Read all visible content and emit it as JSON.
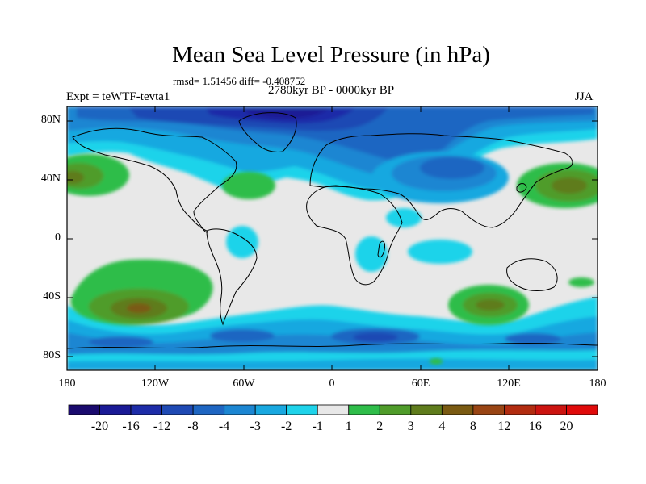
{
  "title": "Mean Sea Level Pressure (in hPa)",
  "stats_line": "rmsd= 1.51456 diff= -0.408752",
  "period_line": "2780kyr BP - 0000kyr BP",
  "experiment_label": "Expt = teWTF-tevta1",
  "season_label": "JJA",
  "lat_ticks": [
    "80N",
    "40N",
    "0",
    "40S",
    "80S"
  ],
  "lon_ticks": [
    "180",
    "120W",
    "60W",
    "0",
    "60E",
    "120E",
    "180"
  ],
  "colorbar": {
    "labels": [
      "-20",
      "-16",
      "-12",
      "-8",
      "-4",
      "-3",
      "-2",
      "-1",
      "1",
      "2",
      "3",
      "4",
      "8",
      "12",
      "16",
      "20"
    ],
    "colors": [
      "#1a0a6e",
      "#1a1a96",
      "#1d2ca8",
      "#1f4ab4",
      "#1e66c2",
      "#1c86d2",
      "#19a8e0",
      "#1fd3ea",
      "#e8e8e8",
      "#2fbd4a",
      "#4f9c2a",
      "#5f7c1c",
      "#7a5a12",
      "#994514",
      "#b22c10",
      "#cc1410",
      "#e00a0a"
    ]
  }
}
